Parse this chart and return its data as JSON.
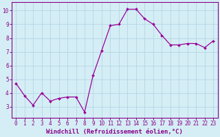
{
  "x": [
    0,
    1,
    2,
    3,
    4,
    5,
    6,
    7,
    8,
    9,
    10,
    11,
    12,
    13,
    14,
    15,
    16,
    17,
    18,
    19,
    20,
    21,
    22,
    23
  ],
  "y": [
    4.7,
    3.8,
    3.1,
    4.0,
    3.4,
    3.6,
    3.7,
    3.7,
    2.6,
    5.3,
    7.1,
    8.9,
    9.0,
    10.1,
    10.1,
    9.4,
    9.0,
    8.2,
    7.5,
    7.5,
    7.6,
    7.6,
    7.3,
    7.8
  ],
  "line_color": "#990099",
  "marker": "D",
  "marker_size": 2.0,
  "line_width": 0.9,
  "background_color": "#d5eef5",
  "grid_color": "#b8d8e8",
  "xlabel": "Windchill (Refroidissement éolien,°C)",
  "xlabel_fontsize": 6.5,
  "xlim": [
    -0.5,
    23.5
  ],
  "ylim": [
    2.2,
    10.6
  ],
  "yticks": [
    3,
    4,
    5,
    6,
    7,
    8,
    9,
    10
  ],
  "xticks": [
    0,
    1,
    2,
    3,
    4,
    5,
    6,
    7,
    8,
    9,
    10,
    11,
    12,
    13,
    14,
    15,
    16,
    17,
    18,
    19,
    20,
    21,
    22,
    23
  ],
  "tick_fontsize": 5.5,
  "spine_color": "#880088",
  "tick_color": "#880088",
  "label_color": "#880088"
}
